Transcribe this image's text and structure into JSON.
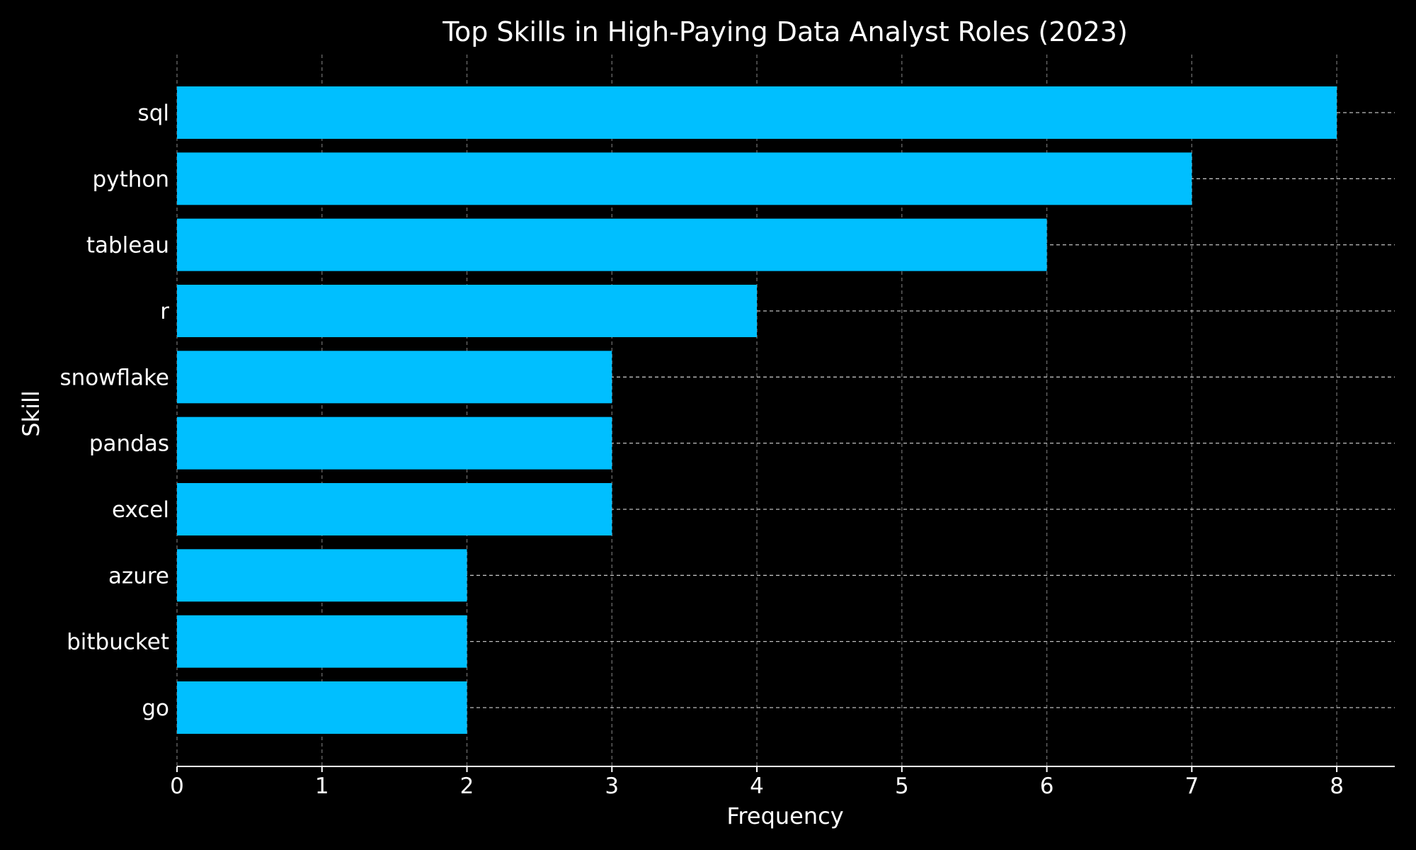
{
  "colors": {
    "background": "#000000",
    "bar": "#00bfff",
    "text": "#ffffff",
    "grid": "#6a6a6a",
    "axis": "#ffffff"
  },
  "chart_data": {
    "type": "bar",
    "orientation": "horizontal",
    "title": "Top Skills in High-Paying Data Analyst Roles (2023)",
    "xlabel": "Frequency",
    "ylabel": "Skill",
    "categories": [
      "sql",
      "python",
      "tableau",
      "r",
      "snowflake",
      "pandas",
      "excel",
      "azure",
      "bitbucket",
      "go"
    ],
    "values": [
      8,
      7,
      6,
      4,
      3,
      3,
      3,
      2,
      2,
      2
    ],
    "xticks": [
      "0",
      "1",
      "2",
      "3",
      "4",
      "5",
      "6",
      "7",
      "8"
    ],
    "xlim": [
      0,
      8.4
    ],
    "grid": true,
    "grid_style": "dashed"
  }
}
